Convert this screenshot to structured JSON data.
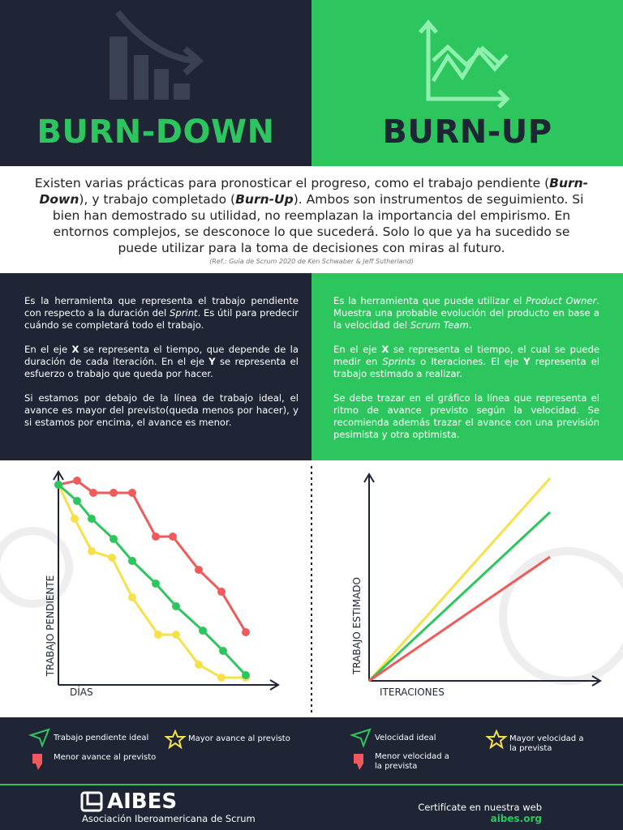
{
  "header": {
    "left_title": "BURN-DOWN",
    "right_title": "BURN-UP"
  },
  "intro": {
    "runs": [
      "Existen varias prácticas para pronosticar el progreso, como el trabajo pendiente (",
      "Burn-Down",
      "), y trabajo completado (",
      "Burn-Up",
      "). Ambos son instrumentos de seguimiento. Si bien han demostrado su utilidad, no reemplazan la importancia del empirismo. En entornos complejos, se desconoce lo que sucederá. Solo lo que ya ha sucedido se puede utilizar para la toma de decisiones con miras al futuro."
    ],
    "ref": "(Ref.: Guía de Scrum 2020 de Ken Schwaber & Jeff Sutherland)"
  },
  "left_description": [
    [
      "Es la herramienta que representa el trabajo pendiente con respecto a la duración del ",
      "Sprint",
      ". Es útil para predecir cuándo se completará todo el trabajo."
    ],
    [
      "En el eje ",
      "X",
      " se representa el tiempo, que depende de la duración de cada iteración. En el eje ",
      "Y",
      " se representa el esfuerzo o trabajo que queda por hacer."
    ],
    [
      "Si estamos por debajo de la línea de trabajo ideal, el avance es mayor del previsto(queda menos por hacer), y si estamos por encima, el avance es menor."
    ]
  ],
  "right_description": [
    [
      "Es la herramienta que puede utilizar el ",
      "Product Owner",
      ". Muestra una probable evolución del producto en base a la velocidad del ",
      "Scrum Team",
      "."
    ],
    [
      "En el eje ",
      "X",
      " se representa el tiempo, el cual se puede medir en ",
      "Sprints",
      " o Iteraciones. El eje ",
      "Y",
      " representa el trabajo estimado a realizar."
    ],
    [
      "Se debe trazar en el gráfico la línea que representa el ritmo de avance previsto según la velocidad. Se recomienda además trazar el avance con una previsión pesimista y otra optimista."
    ]
  ],
  "charts": {
    "burn_down": {
      "y_label": "TRABAJO PENDIENTE",
      "x_label": "DÍAS"
    },
    "burn_up": {
      "y_label": "TRABAJO ESTIMADO",
      "x_label": "ITERACIONES"
    }
  },
  "legends": {
    "left": [
      "Trabajo pendiente ideal",
      "Menor avance al previsto",
      "Mayor avance al previsto"
    ],
    "right": [
      "Velocidad ideal",
      "Menor velocidad a la prevista",
      "Mayor velocidad a la prevista"
    ]
  },
  "footer": {
    "brand": "AIBES",
    "subtitle": "Asociación Iberoamericana de Scrum",
    "cta": "Certifícate en nuestra web",
    "url": "aibes.org"
  }
}
